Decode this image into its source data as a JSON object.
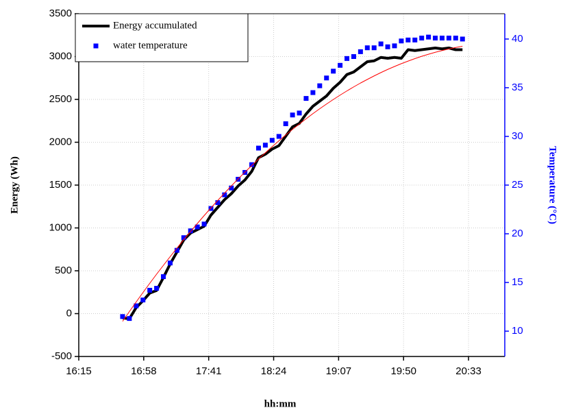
{
  "chart_data": {
    "type": "line",
    "x_label": "hh:mm",
    "y_label": "Energy (Wh)",
    "y2_label": "Temperature (°C)",
    "x": [
      1004,
      1008.5,
      1013,
      1017.5,
      1022,
      1026.5,
      1031,
      1035.5,
      1040,
      1044.5,
      1049,
      1053.5,
      1058,
      1062.5,
      1067,
      1071.5,
      1076,
      1080.5,
      1085,
      1089.5,
      1094,
      1098.5,
      1103,
      1107.5,
      1112,
      1116.5,
      1121,
      1125.5,
      1130,
      1134.5,
      1139,
      1143.5,
      1148,
      1152.5,
      1157,
      1161.5,
      1166,
      1170.5,
      1175,
      1179.5,
      1184,
      1188.5,
      1193,
      1197.5,
      1202,
      1206.5,
      1211,
      1215.5,
      1220,
      1224.5,
      1229
    ],
    "xlim": [
      975,
      1257
    ],
    "xticks": [
      {
        "value": 975,
        "label": "16:15"
      },
      {
        "value": 1018,
        "label": "16:58"
      },
      {
        "value": 1061,
        "label": "17:41"
      },
      {
        "value": 1104,
        "label": "18:24"
      },
      {
        "value": 1147,
        "label": "19:07"
      },
      {
        "value": 1190,
        "label": "19:50"
      },
      {
        "value": 1233,
        "label": "20:33"
      }
    ],
    "ylim": [
      -500,
      3500
    ],
    "yticks": [
      -500,
      0,
      500,
      1000,
      1500,
      2000,
      2500,
      3000,
      3500
    ],
    "y2lim": [
      7.4,
      42.6
    ],
    "y2ticks": [
      10,
      15,
      20,
      25,
      30,
      35,
      40
    ],
    "grid": true,
    "legend": "upper-left",
    "series": [
      {
        "name": "Energy accumulated",
        "type": "line",
        "color": "#000000",
        "values": [
          -50,
          -60,
          70,
          150,
          240,
          270,
          420,
          580,
          720,
          860,
          940,
          980,
          1020,
          1150,
          1240,
          1330,
          1400,
          1490,
          1560,
          1660,
          1820,
          1860,
          1920,
          1960,
          2070,
          2180,
          2220,
          2330,
          2420,
          2480,
          2540,
          2630,
          2700,
          2790,
          2820,
          2880,
          2940,
          2950,
          2990,
          2980,
          2990,
          2980,
          3080,
          3070,
          3080,
          3090,
          3100,
          3090,
          3100,
          3080,
          3080
        ]
      },
      {
        "name": "water temperature",
        "type": "scatter",
        "color": "#0000ff",
        "axis": "y2",
        "values": [
          11.5,
          11.3,
          12.6,
          13.2,
          14.2,
          14.4,
          15.6,
          17,
          18.3,
          19.6,
          20.3,
          20.7,
          21,
          22.6,
          23.2,
          24,
          24.7,
          25.6,
          26.3,
          27.1,
          28.8,
          29.1,
          29.6,
          30,
          31.3,
          32.2,
          32.4,
          33.9,
          34.5,
          35.2,
          36,
          36.7,
          37.3,
          38,
          38.2,
          38.7,
          39.1,
          39.1,
          39.5,
          39.2,
          39.3,
          39.8,
          39.9,
          39.9,
          40.1,
          40.2,
          40.1,
          40.1,
          40.1,
          40.1,
          40
        ]
      },
      {
        "type": "line",
        "color": "#ff0000",
        "values": [
          -90,
          24,
          136,
          246,
          354,
          460,
          563,
          665,
          765,
          863,
          958,
          1052,
          1144,
          1234,
          1321,
          1407,
          1490,
          1572,
          1651,
          1728,
          1804,
          1877,
          1948,
          2017,
          2085,
          2150,
          2213,
          2274,
          2334,
          2391,
          2446,
          2499,
          2550,
          2599,
          2646,
          2691,
          2733,
          2774,
          2813,
          2850,
          2884,
          2917,
          2947,
          2976,
          3003,
          3027,
          3050,
          3070,
          3089,
          3106,
          3120
        ]
      }
    ]
  }
}
